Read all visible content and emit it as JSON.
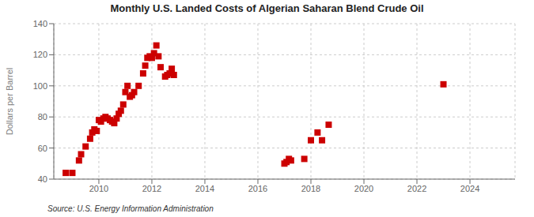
{
  "chart_data": {
    "type": "scatter",
    "title": "Monthly U.S. Landed Costs of Algerian Saharan Blend Crude Oil",
    "ylabel": "Dollars per Barrel",
    "annotations": [
      "Source: U.S. Energy Information Administration"
    ],
    "color": "#cc0000",
    "marker": "square",
    "grid": true,
    "xlim": [
      2008.3,
      2025.7
    ],
    "ylim": [
      40,
      140
    ],
    "xticks": [
      2010,
      2012,
      2014,
      2016,
      2018,
      2020,
      2022,
      2024
    ],
    "yticks": [
      40,
      60,
      80,
      100,
      120,
      140
    ],
    "x": [
      2008.75,
      2009.0,
      2009.25,
      2009.33,
      2009.5,
      2009.67,
      2009.75,
      2009.83,
      2009.92,
      2010.0,
      2010.08,
      2010.17,
      2010.25,
      2010.33,
      2010.42,
      2010.5,
      2010.58,
      2010.67,
      2010.75,
      2010.83,
      2010.92,
      2011.0,
      2011.08,
      2011.17,
      2011.25,
      2011.33,
      2011.5,
      2011.67,
      2011.75,
      2011.83,
      2011.92,
      2012.0,
      2012.08,
      2012.17,
      2012.25,
      2012.33,
      2012.5,
      2012.58,
      2012.67,
      2012.75,
      2012.83,
      2017.0,
      2017.08,
      2017.17,
      2017.25,
      2017.75,
      2018.0,
      2018.25,
      2018.42,
      2018.67,
      2023.0
    ],
    "values": [
      44,
      44,
      52,
      56,
      61,
      66,
      70,
      72,
      71,
      78,
      77,
      79,
      80,
      79,
      78,
      77,
      76,
      79,
      82,
      84,
      88,
      96,
      100,
      93,
      94,
      96,
      100,
      108,
      113,
      118,
      119,
      118,
      121,
      126,
      119,
      112,
      106,
      107,
      108,
      111,
      107,
      50,
      51,
      53,
      52,
      53,
      65,
      70,
      65,
      75,
      101
    ]
  }
}
